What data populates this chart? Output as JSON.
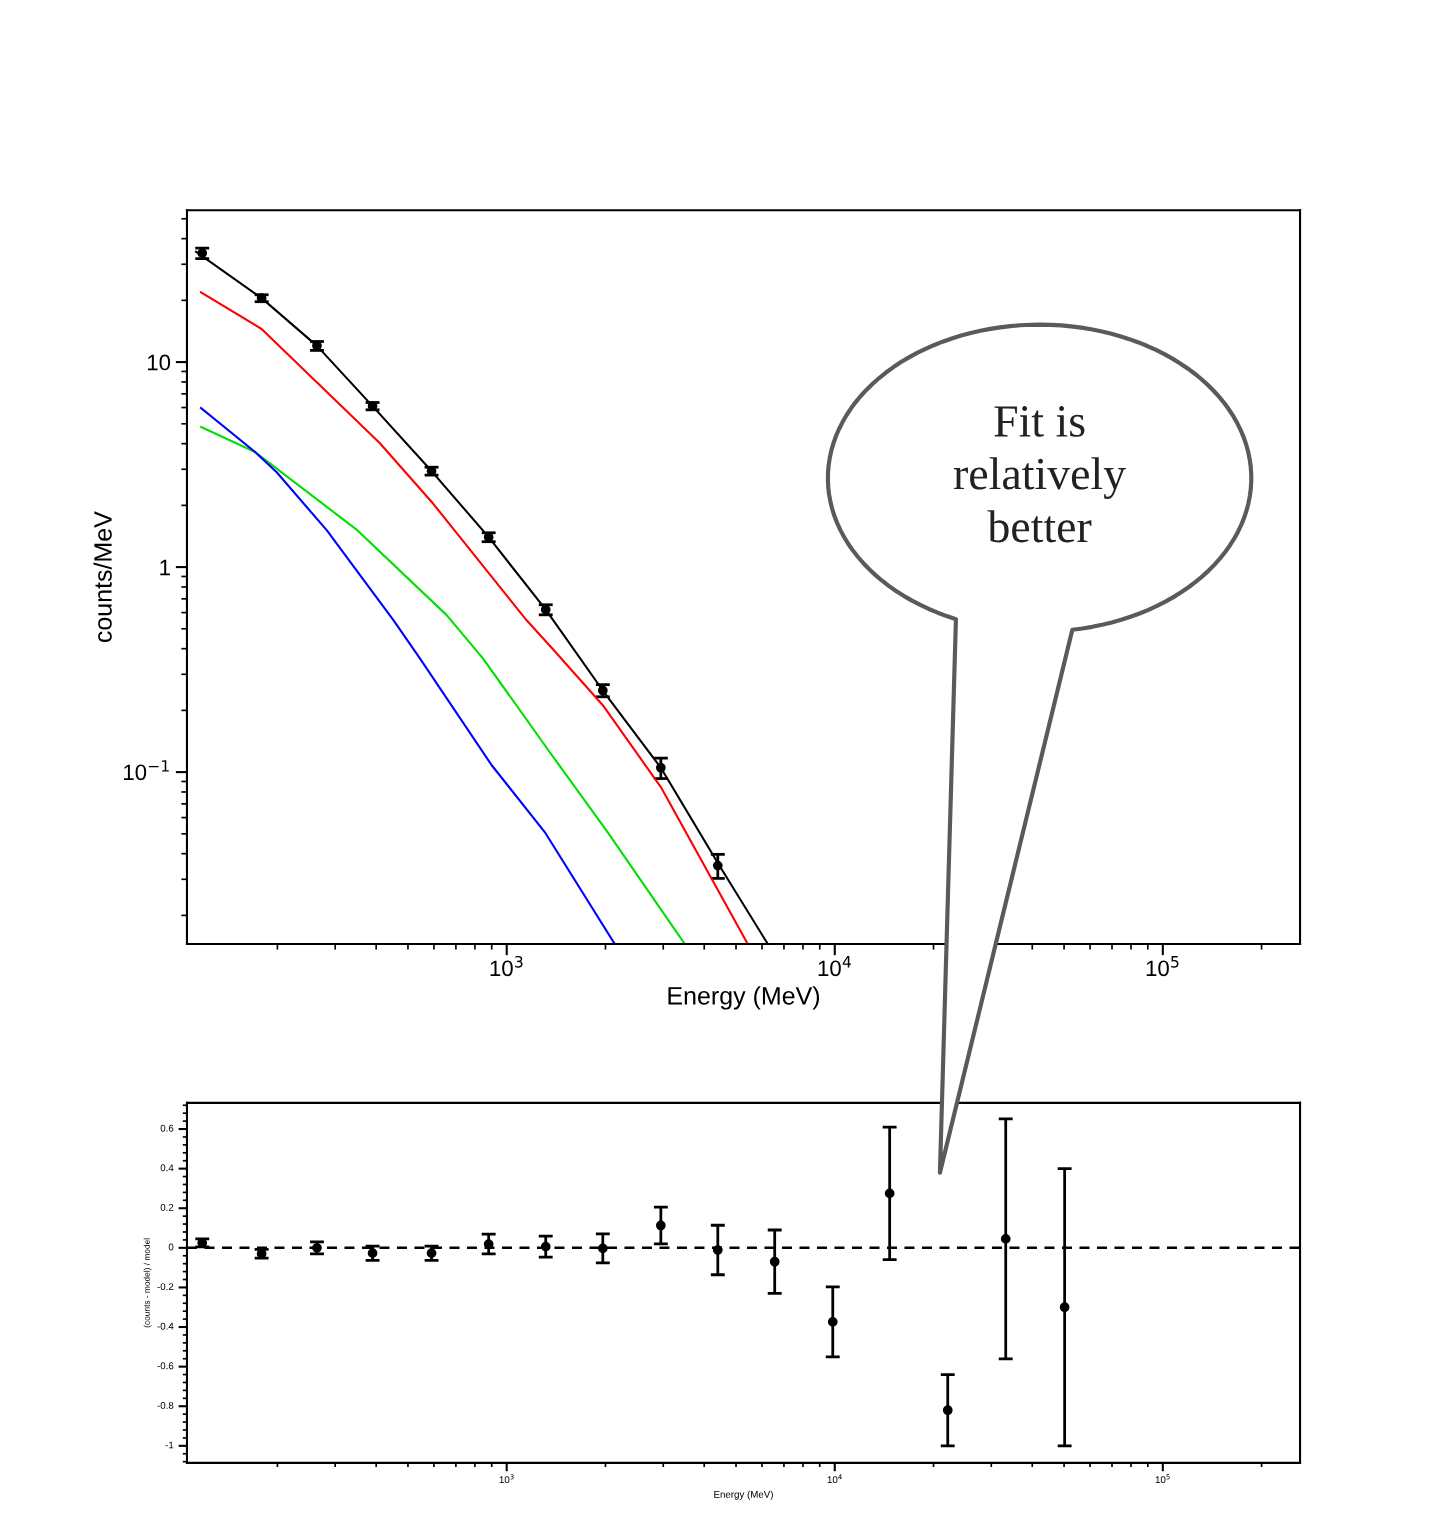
{
  "chart_data": [
    {
      "type": "line",
      "xlabel": "Energy (MeV)",
      "ylabel": "counts/MeV",
      "log": "xy",
      "xlim": [
        106,
        262000
      ],
      "ylim": [
        0.0145,
        55
      ],
      "xticks": [
        {
          "value": 1000,
          "label": "10$^{3}$"
        },
        {
          "value": 10000,
          "label": "10$^{4}$"
        },
        {
          "value": 100000,
          "label": "10$^{5}$"
        }
      ],
      "yticks": [
        {
          "value": 0.1,
          "label": "10$^{−1}$"
        },
        1,
        10
      ],
      "series": [
        {
          "type": "scatter",
          "color": "#000000",
          "marker": "circle",
          "x": [
            118,
            179,
            264,
            390,
            590,
            881,
            1315,
            1963,
            2950,
            4400
          ],
          "values": [
            34,
            20.5,
            12.0,
            6.1,
            2.94,
            1.4,
            0.62,
            0.25,
            0.105,
            0.035
          ],
          "errors": [
            2,
            0.8,
            0.6,
            0.25,
            0.13,
            0.07,
            0.035,
            0.017,
            0.012,
            0.0047
          ]
        },
        {
          "type": "line",
          "color": "#000000",
          "x": [
            113,
            179,
            264,
            390,
            590,
            881,
            1315,
            1963,
            2950,
            4400,
            6250
          ],
          "values": [
            34.5,
            20.5,
            12.0,
            6.1,
            2.94,
            1.4,
            0.62,
            0.25,
            0.105,
            0.036,
            0.0145
          ]
        },
        {
          "type": "line",
          "color": "#ff0000",
          "x": [
            117,
            179,
            410,
            598,
            1150,
            1390,
            1963,
            2950,
            5430
          ],
          "values": [
            21.9,
            14.5,
            4.03,
            2.03,
            0.55,
            0.394,
            0.212,
            0.0845,
            0.0145
          ]
        },
        {
          "type": "line",
          "color": "#00e000",
          "x": [
            117,
            171,
            351,
            656,
            845,
            1353,
            2030,
            3490
          ],
          "values": [
            4.82,
            3.64,
            1.51,
            0.583,
            0.36,
            0.125,
            0.051,
            0.0145
          ]
        },
        {
          "type": "line",
          "color": "#0000ff",
          "x": [
            117,
            171,
            199,
            283,
            452,
            543,
            900,
            1306,
            2135
          ],
          "values": [
            5.97,
            3.64,
            2.9,
            1.51,
            0.55,
            0.36,
            0.108,
            0.051,
            0.0145
          ]
        }
      ]
    },
    {
      "type": "scatter",
      "xlabel": "Energy (MeV)",
      "ylabel": "(counts - model) / model",
      "log": "x",
      "xlim": [
        106,
        262000
      ],
      "ylim": [
        -1.086,
        0.732
      ],
      "xticks": [
        {
          "value": 1000,
          "label": "10$^{3}$"
        },
        {
          "value": 10000,
          "label": "10$^{4}$"
        },
        {
          "value": 100000,
          "label": "10$^{5}$"
        }
      ],
      "yticks": [
        {
          "value": -1,
          "label": "-1"
        },
        {
          "value": -0.8,
          "label": "-0.8"
        },
        {
          "value": -0.6,
          "label": "-0.6"
        },
        {
          "value": -0.4,
          "label": "-0.4"
        },
        {
          "value": -0.2,
          "label": "-0.2"
        },
        0,
        0.2,
        0.4,
        0.6
      ],
      "series": [
        {
          "color": "#000000",
          "marker": "circle",
          "x": [
            118,
            179,
            264,
            390,
            590,
            881,
            1315,
            1963,
            2950,
            4400,
            6560,
            9860,
            14700,
            22100,
            33200,
            50200
          ],
          "values": [
            0.025,
            -0.03,
            0,
            -0.027,
            -0.027,
            0.019,
            0.006,
            -0.003,
            0.113,
            -0.011,
            -0.07,
            -0.374,
            0.275,
            -0.82,
            0.045,
            -0.3
          ],
          "errors": [
            0.02,
            0.022,
            0.03,
            0.036,
            0.036,
            0.05,
            0.053,
            0.073,
            0.093,
            0.125,
            0.16,
            0.177,
            0.335,
            0.18,
            0.606,
            0.7
          ]
        }
      ],
      "ref_lines": [
        {
          "axis": "y",
          "value": 0,
          "line_style": "dashed",
          "color": "#000000"
        }
      ],
      "annotations": [
        "Fit is\nrelatively\nbetter"
      ]
    }
  ]
}
